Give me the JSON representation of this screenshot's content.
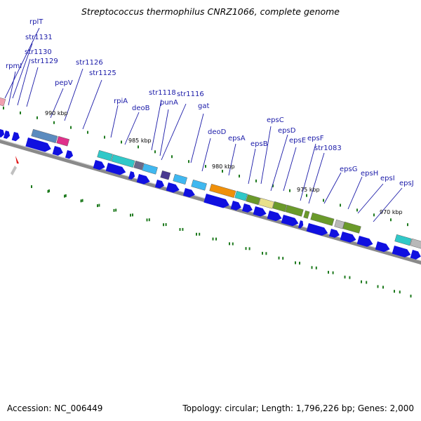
{
  "title": "Streptococcus thermophilus CNRZ1066, complete genome",
  "footer": {
    "accession": "Accession: NC_006449",
    "summary": "Topology: circular; Length: 1,796,226 bp; Genes: 2,000"
  },
  "gene_labels": [
    "rplT",
    "str1131",
    "str1130",
    "rpmI",
    "str1129",
    "pepV",
    "str1126",
    "str1125",
    "rpiA",
    "deoB",
    "str1118",
    "str1116",
    "punA",
    "gat",
    "deoD",
    "epsA",
    "epsB",
    "epsC",
    "epsD",
    "epsE",
    "epsF",
    "str1083",
    "epsG",
    "epsH",
    "epsI",
    "epsJ"
  ],
  "kbp_labels": [
    "990 kbp",
    "985 kbp",
    "980 kbp",
    "975 kbp",
    "970 kbp"
  ],
  "colors": {
    "label": "#1a1aa8",
    "arrow": "#1010e0",
    "backbone": "#8a8a8a",
    "tick": "#1e7a1e",
    "cog_steelblue": "#5b8bbf",
    "cog_magenta": "#e0308a",
    "cog_cyan": "#30c8c8",
    "cog_skyblue": "#40b8f0",
    "cog_slate": "#6a6a8a",
    "cog_indigo": "#4a3a90",
    "cog_orange": "#f0900a",
    "cog_olive": "#6a9a2a",
    "cog_khaki": "#e8e08a",
    "cog_gray": "#b8b8b8",
    "cog_pink": "#f0a0b0",
    "marker_red": "#e01010"
  }
}
